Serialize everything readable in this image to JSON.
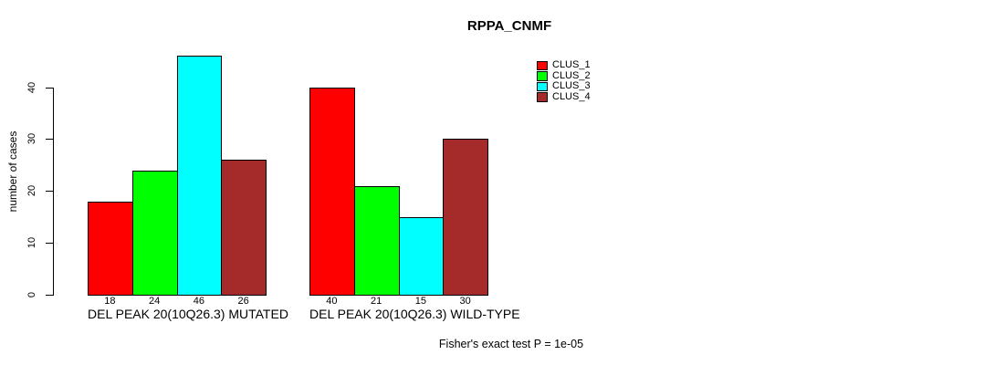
{
  "figure": {
    "background": "#ffffff",
    "text_color": "#000000"
  },
  "chart_data": {
    "type": "bar",
    "title": "RPPA_CNMF",
    "xlabel": "",
    "ylabel": "number of cases",
    "ylim": [
      0,
      46
    ],
    "yticks": [
      0,
      10,
      20,
      30,
      40
    ],
    "grid": false,
    "legend_position": "top-right",
    "categories": [
      "DEL PEAK 20(10Q26.3) MUTATED",
      "DEL PEAK 20(10Q26.3) WILD-TYPE"
    ],
    "series": [
      {
        "name": "CLUS_1",
        "color": "#FF0000",
        "values": [
          18,
          40
        ]
      },
      {
        "name": "CLUS_2",
        "color": "#00FF00",
        "values": [
          24,
          21
        ]
      },
      {
        "name": "CLUS_3",
        "color": "#00FFFF",
        "values": [
          46,
          15
        ]
      },
      {
        "name": "CLUS_4",
        "color": "#A52A2A",
        "values": [
          26,
          30
        ]
      }
    ],
    "bar_value_labels": [
      [
        18,
        24,
        46,
        26
      ],
      [
        40,
        21,
        15,
        30
      ]
    ],
    "annotation": "Fisher's exact test P = 1e-05"
  }
}
